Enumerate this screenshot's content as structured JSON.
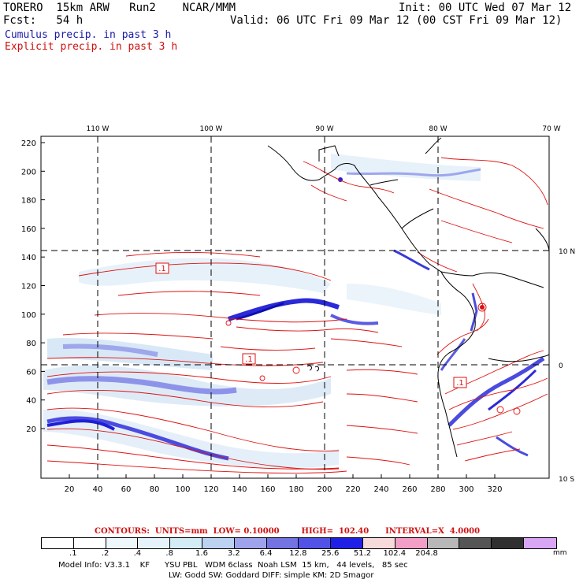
{
  "header": {
    "line1_left": "TORERO  15km ARW   Run2    NCAR/MMM",
    "line1_right": "Init: 00 UTC Wed 07 Mar 12",
    "line2_left": "Fcst:   54 h",
    "line2_right": "Valid: 06 UTC Fri 09 Mar 12 (00 CST Fri 09 Mar 12)",
    "cumulus": "Cumulus precip. in past 3 h",
    "explicit": "Explicit precip. in past 3 h"
  },
  "map": {
    "top_lon_labels": [
      "110 W",
      "100 W",
      "90 W",
      "80 W",
      "70 W"
    ],
    "right_lat_labels": [
      "10 N",
      "0",
      "10 S"
    ],
    "left_y_ticks": [
      "220",
      "200",
      "180",
      "160",
      "140",
      "120",
      "100",
      "80",
      "60",
      "40",
      "20"
    ],
    "bottom_x_ticks": [
      "20",
      "40",
      "60",
      "80",
      "100",
      "120",
      "140",
      "160",
      "180",
      "200",
      "220",
      "240",
      "260",
      "280",
      "300",
      "320"
    ],
    "contour_boxes": [
      ".1",
      ".1",
      ".1"
    ],
    "colors": {
      "contour": "#e01010",
      "coast": "#000000",
      "grid": "#000000"
    }
  },
  "legend": {
    "title": "CONTOURS:  UNITS=mm  LOW= 0.10000        HIGH=  102.40      INTERVAL=X  4.0000",
    "bins": [
      "#ffffff",
      "#ffffff",
      "#eef7fb",
      "#e6f3fa",
      "#d4ecf5",
      "#bcd2f0",
      "#9fa3ec",
      "#7373e2",
      "#5252e6",
      "#1f1fe6",
      "#f7dada",
      "#f29ec6",
      "#b8b8b8",
      "#555555",
      "#303030",
      "#d9a5f5"
    ],
    "values": [
      ".1",
      ".2",
      ".4",
      ".8",
      "1.6",
      "3.2",
      "6.4",
      "12.8",
      "25.6",
      "51.2",
      "102.4",
      "204.8"
    ],
    "unit": "mm"
  },
  "footer": {
    "line1": "Model Info: V3.3.1    KF      YSU PBL   WDM 6class  Noah LSM  15 km,   44 levels,   85 sec",
    "line2": "LW: Godd SW: Goddard DIFF: simple KM: 2D Smagor"
  }
}
